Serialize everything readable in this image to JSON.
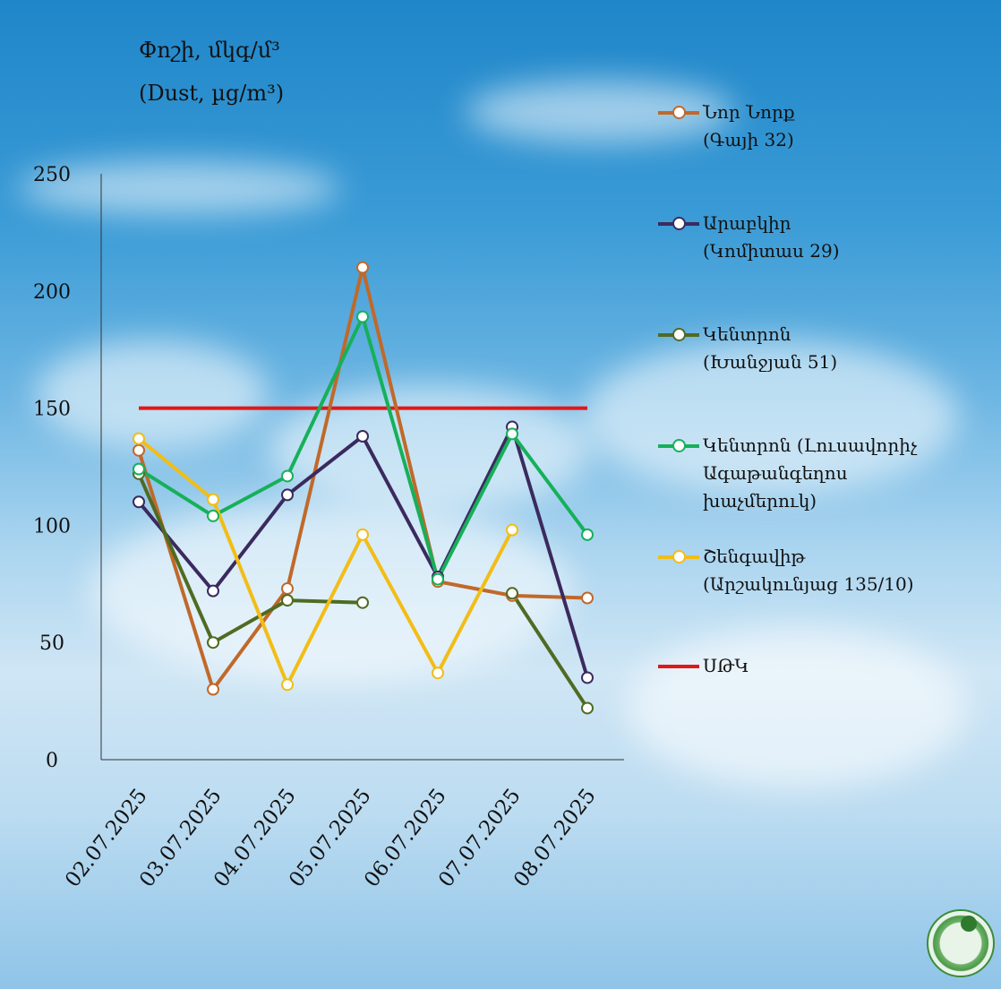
{
  "title_line1": "Փոշի, մկգ/մ³",
  "title_line2": "(Dust, µg/m³)",
  "chart_data": {
    "type": "line",
    "categories": [
      "02.07.2025",
      "03.07.2025",
      "04.07.2025",
      "05.07.2025",
      "06.07.2025",
      "07.07.2025",
      "08.07.2025"
    ],
    "ylim": [
      0,
      250
    ],
    "yticks": [
      0,
      50,
      100,
      150,
      200,
      250
    ],
    "series": [
      {
        "name": "Նոր Նորք",
        "name_sub": "(Գայի 32)",
        "color": "#c0692a",
        "values": [
          132,
          30,
          73,
          210,
          76,
          70,
          69
        ]
      },
      {
        "name": "Արաբկիր",
        "name_sub": "(Կոմիտաս 29)",
        "color": "#3b2a5e",
        "values": [
          110,
          72,
          113,
          138,
          78,
          142,
          35
        ]
      },
      {
        "name": "Կենտրոն",
        "name_sub": "(Խանջյան 51)",
        "color": "#4f6b22",
        "values": [
          122,
          50,
          68,
          67,
          null,
          71,
          22
        ]
      },
      {
        "name": "Կենտրոն (Լուսավորիչ",
        "name_sub": "Ագաթանգեղոս",
        "name_sub2": "խաչմերուկ)",
        "color": "#16b05a",
        "values": [
          124,
          104,
          121,
          189,
          77,
          139,
          96
        ]
      },
      {
        "name": "Շենգավիթ",
        "name_sub": "(Արշակունյաց 135/10)",
        "color": "#f2bd16",
        "values": [
          137,
          111,
          32,
          96,
          37,
          98,
          null
        ]
      }
    ],
    "threshold": {
      "name": "ՍԹԿ",
      "value": 150,
      "color": "#e01818"
    }
  }
}
